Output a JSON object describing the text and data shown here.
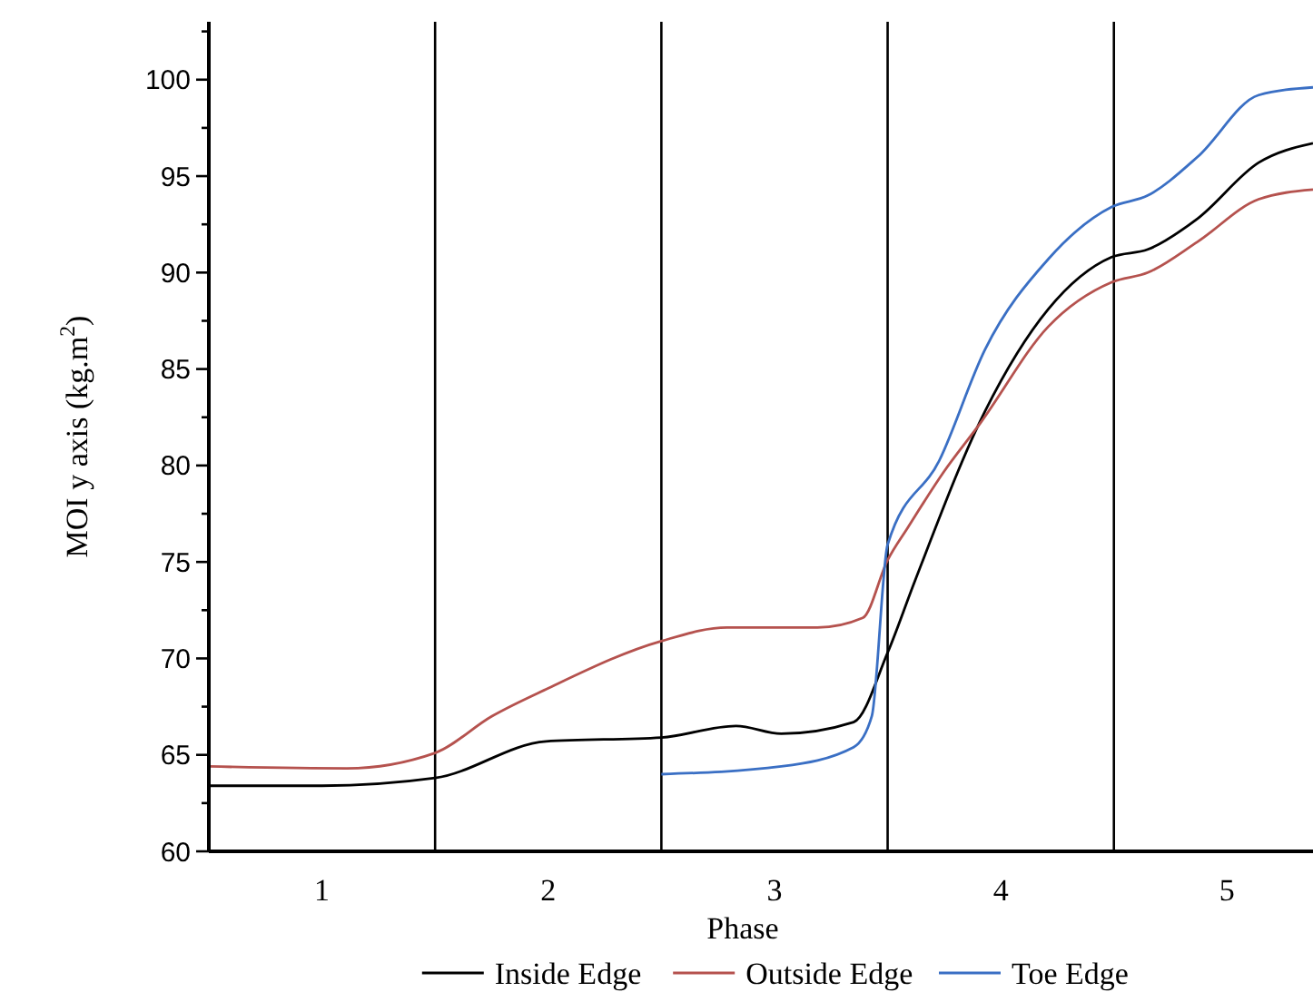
{
  "chart_data": {
    "type": "line",
    "xlabel": "Phase",
    "ylabel": "MOI y axis (kg.m$^{2}$)",
    "xlim": [
      0.5,
      5.38
    ],
    "xticks": [
      1,
      2,
      3,
      4,
      5
    ],
    "ylim": [
      60,
      103
    ],
    "yticks": [
      60,
      {
        "value": 62.5,
        "label": null
      },
      65,
      {
        "value": 67.5,
        "label": null
      },
      70,
      {
        "value": 72.5,
        "label": null
      },
      75,
      {
        "value": 77.5,
        "label": null
      },
      80,
      {
        "value": 82.5,
        "label": null
      },
      85,
      {
        "value": 87.5,
        "label": null
      },
      90,
      {
        "value": 92.5,
        "label": null
      },
      95,
      {
        "value": 97.5,
        "label": null
      },
      100,
      {
        "value": 102.5,
        "label": null
      }
    ],
    "grid": false,
    "legend": "bottom",
    "marker": "none",
    "line_style": "solid",
    "ref_lines": [
      {
        "axis": "x",
        "value": 1.5,
        "color": "#000000"
      },
      {
        "axis": "x",
        "value": 2.5,
        "color": "#000000"
      },
      {
        "axis": "x",
        "value": 3.5,
        "color": "#000000"
      },
      {
        "axis": "x",
        "value": 4.5,
        "color": "#000000"
      }
    ],
    "series": [
      {
        "name": "Inside Edge",
        "color": "#000000",
        "x": [
          0.5,
          1.0,
          1.5,
          1.99,
          2.5,
          2.83,
          3.03,
          3.35,
          3.5,
          3.62,
          3.93,
          4.21,
          4.49,
          4.65,
          4.87,
          5.14,
          5.38
        ],
        "values": [
          63.4,
          63.4,
          63.8,
          65.7,
          65.9,
          66.5,
          66.1,
          66.7,
          70.3,
          74.0,
          82.8,
          88.1,
          90.8,
          91.2,
          92.8,
          95.7,
          96.7
        ]
      },
      {
        "name": "Outside Edge",
        "color": "#b5524e",
        "x": [
          0.5,
          1.11,
          1.5,
          1.75,
          1.99,
          2.5,
          2.79,
          3.19,
          3.39,
          3.5,
          3.59,
          3.75,
          3.91,
          4.21,
          4.49,
          4.65,
          4.87,
          5.14,
          5.38
        ],
        "values": [
          64.4,
          64.3,
          65.1,
          67.0,
          68.4,
          70.9,
          71.6,
          71.6,
          72.1,
          75.1,
          76.8,
          79.7,
          82.2,
          87.2,
          89.5,
          90.0,
          91.6,
          93.8,
          94.3
        ]
      },
      {
        "name": "Toe Edge",
        "color": "#3a6fc4",
        "x": [
          2.5,
          3.03,
          3.35,
          3.43,
          3.5,
          3.73,
          3.93,
          4.21,
          4.49,
          4.65,
          4.87,
          5.14,
          5.38
        ],
        "values": [
          64.0,
          64.4,
          65.4,
          67.0,
          75.9,
          80.3,
          86.0,
          90.7,
          93.4,
          94.0,
          96.0,
          99.2,
          99.6
        ]
      }
    ]
  }
}
